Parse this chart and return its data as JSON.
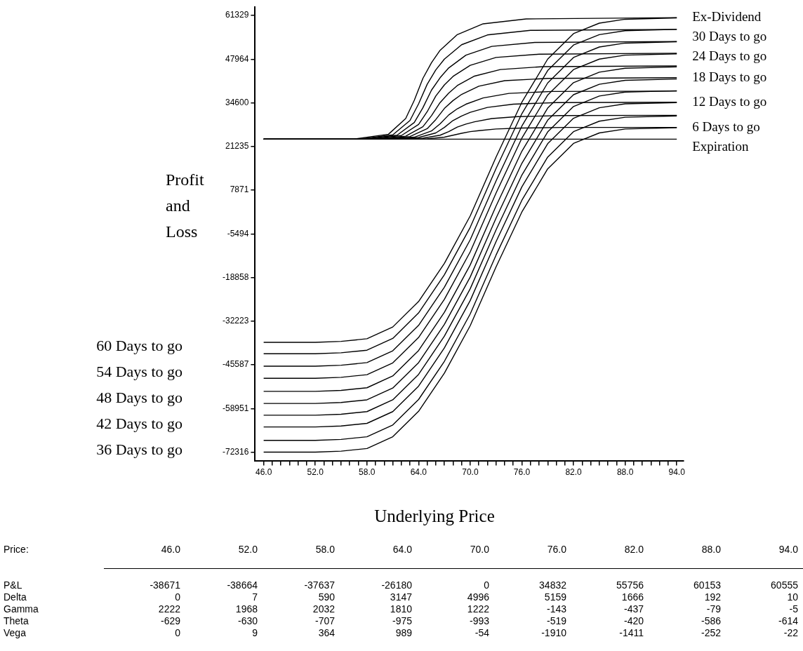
{
  "chart_data": {
    "type": "line",
    "xlabel": "Underlying Price",
    "ylabel": "Profit and Loss",
    "xlim": [
      45,
      94.8
    ],
    "ylim": [
      -74900,
      63900
    ],
    "xticks": [
      {
        "value": 46,
        "label": "46.0"
      },
      {
        "value": 47,
        "label": null
      },
      {
        "value": 48,
        "label": null
      },
      {
        "value": 49,
        "label": null
      },
      {
        "value": 50,
        "label": null
      },
      {
        "value": 51,
        "label": null
      },
      {
        "value": 52,
        "label": "52.0"
      },
      {
        "value": 53,
        "label": null
      },
      {
        "value": 54,
        "label": null
      },
      {
        "value": 55,
        "label": null
      },
      {
        "value": 56,
        "label": null
      },
      {
        "value": 57,
        "label": null
      },
      {
        "value": 58,
        "label": "58.0"
      },
      {
        "value": 59,
        "label": null
      },
      {
        "value": 60,
        "label": null
      },
      {
        "value": 61,
        "label": null
      },
      {
        "value": 62,
        "label": null
      },
      {
        "value": 63,
        "label": null
      },
      {
        "value": 64,
        "label": "64.0"
      },
      {
        "value": 65,
        "label": null
      },
      {
        "value": 66,
        "label": null
      },
      {
        "value": 67,
        "label": null
      },
      {
        "value": 68,
        "label": null
      },
      {
        "value": 69,
        "label": null
      },
      {
        "value": 70,
        "label": "70.0"
      },
      {
        "value": 71,
        "label": null
      },
      {
        "value": 72,
        "label": null
      },
      {
        "value": 73,
        "label": null
      },
      {
        "value": 74,
        "label": null
      },
      {
        "value": 75,
        "label": null
      },
      {
        "value": 76,
        "label": "76.0"
      },
      {
        "value": 77,
        "label": null
      },
      {
        "value": 78,
        "label": null
      },
      {
        "value": 79,
        "label": null
      },
      {
        "value": 80,
        "label": null
      },
      {
        "value": 81,
        "label": null
      },
      {
        "value": 82,
        "label": "82.0"
      },
      {
        "value": 83,
        "label": null
      },
      {
        "value": 84,
        "label": null
      },
      {
        "value": 85,
        "label": null
      },
      {
        "value": 86,
        "label": null
      },
      {
        "value": 87,
        "label": null
      },
      {
        "value": 88,
        "label": "88.0"
      },
      {
        "value": 89,
        "label": null
      },
      {
        "value": 90,
        "label": null
      },
      {
        "value": 91,
        "label": null
      },
      {
        "value": 92,
        "label": null
      },
      {
        "value": 93,
        "label": null
      },
      {
        "value": 94,
        "label": "94.0"
      }
    ],
    "yticks": [
      61329,
      47964,
      34600,
      21235,
      7871,
      -5494,
      -18858,
      -32223,
      -45587,
      -58951,
      -72316
    ],
    "grid": false,
    "legend": false,
    "marker": "none",
    "line_style": "solid",
    "series": [
      {
        "name": "Ex-Dividend",
        "color": "#000000",
        "x": [
          46,
          56.5,
          60.5,
          62.5,
          63.5,
          64.5,
          65.5,
          66.5,
          68.5,
          71.5,
          76.5,
          94
        ],
        "values": [
          23500,
          23500,
          25000,
          29800,
          35400,
          42100,
          46900,
          50700,
          55500,
          58800,
          60300,
          60700
        ]
      },
      {
        "name": "30 Days to go",
        "color": "#000000",
        "x": [
          46,
          57,
          61,
          63,
          64,
          65,
          66,
          67,
          69,
          72,
          77,
          94
        ],
        "values": [
          23500,
          23500,
          24800,
          29200,
          34300,
          40300,
          44700,
          48000,
          52400,
          55400,
          56800,
          57100
        ]
      },
      {
        "color": "#000000",
        "x": [
          46,
          57.5,
          61.5,
          63.5,
          64.5,
          65.5,
          66.5,
          67.5,
          69.5,
          72.5,
          77.5,
          94
        ],
        "values": [
          23500,
          23500,
          24700,
          28600,
          33100,
          38500,
          42300,
          45300,
          49200,
          51900,
          53100,
          53400
        ]
      },
      {
        "name": "24 Days to go",
        "color": "#000000",
        "x": [
          46,
          58,
          62,
          64,
          65,
          66,
          67,
          68,
          70,
          73,
          78,
          94
        ],
        "values": [
          23500,
          23500,
          24600,
          28000,
          31900,
          36700,
          40100,
          42700,
          46100,
          48500,
          49500,
          49800
        ]
      },
      {
        "color": "#000000",
        "x": [
          46,
          58.5,
          62.5,
          64.5,
          65.5,
          66.5,
          67.5,
          68.5,
          70.5,
          73.5,
          78.5,
          94
        ],
        "values": [
          23500,
          23500,
          24400,
          27300,
          30700,
          34700,
          37600,
          39900,
          42800,
          44800,
          45700,
          45900
        ]
      },
      {
        "name": "18 Days to go",
        "color": "#000000",
        "x": [
          46,
          59,
          63,
          65,
          66,
          67,
          68,
          69,
          71,
          74,
          79,
          94
        ],
        "values": [
          23500,
          23500,
          24300,
          26700,
          29500,
          32900,
          35300,
          37200,
          39700,
          41400,
          42100,
          42300
        ]
      },
      {
        "color": "#000000",
        "x": [
          46,
          59.5,
          63.5,
          65.5,
          66.5,
          67.5,
          68.5,
          69.5,
          71.5,
          74.5,
          79.5,
          94
        ],
        "values": [
          23500,
          23500,
          24100,
          26000,
          28200,
          30900,
          32800,
          34200,
          36100,
          37500,
          38100,
          38200
        ]
      },
      {
        "name": "12 Days to go",
        "color": "#000000",
        "x": [
          46,
          60,
          64,
          66,
          67,
          68,
          69,
          70,
          72,
          75,
          80,
          94
        ],
        "values": [
          23500,
          23500,
          24000,
          25400,
          27100,
          29200,
          30600,
          31700,
          33200,
          34200,
          34700,
          34800
        ]
      },
      {
        "color": "#000000",
        "x": [
          46,
          60.5,
          64.5,
          66.5,
          67.5,
          68.5,
          69.5,
          70.5,
          72.5,
          75.5,
          80.5,
          94
        ],
        "values": [
          23500,
          23500,
          23800,
          24700,
          25800,
          27200,
          28100,
          28800,
          29800,
          30400,
          30700,
          30800
        ]
      },
      {
        "name": "6 Days to go",
        "color": "#000000",
        "x": [
          46,
          61,
          65,
          67,
          68,
          69,
          70,
          71,
          73,
          76,
          81,
          94
        ],
        "values": [
          23500,
          23500,
          23600,
          24100,
          24700,
          25300,
          25800,
          26100,
          26600,
          26900,
          27100,
          27100
        ]
      },
      {
        "name": "Expiration",
        "color": "#000000",
        "x": [
          46,
          94
        ],
        "values": [
          23500,
          23500
        ]
      },
      {
        "color": "#000000",
        "x": [
          46,
          52,
          55,
          58,
          61,
          64,
          67,
          70,
          73,
          76,
          79,
          82,
          85,
          88,
          94
        ],
        "values": [
          -38700,
          -38700,
          -38400,
          -37600,
          -34000,
          -26200,
          -14500,
          0,
          18000,
          34800,
          48000,
          55800,
          59000,
          60200,
          60600
        ]
      },
      {
        "color": "#000000",
        "x": [
          46,
          52,
          55,
          58,
          61,
          64,
          67,
          70,
          73,
          76,
          79,
          82,
          85,
          88,
          94
        ],
        "values": [
          -42200,
          -42200,
          -41900,
          -41100,
          -37500,
          -29700,
          -18000,
          -3500,
          14500,
          31300,
          44500,
          52300,
          55500,
          56700,
          57100
        ]
      },
      {
        "color": "#000000",
        "x": [
          46,
          52,
          55,
          58,
          61,
          64,
          67,
          70,
          73,
          76,
          79,
          82,
          85,
          88,
          94
        ],
        "values": [
          -46000,
          -46000,
          -45700,
          -44900,
          -41300,
          -33500,
          -21800,
          -7300,
          10700,
          27500,
          40700,
          48500,
          51700,
          52900,
          53300
        ]
      },
      {
        "color": "#000000",
        "x": [
          46,
          52,
          55,
          58,
          61,
          64,
          67,
          70,
          73,
          76,
          79,
          82,
          85,
          88,
          94
        ],
        "values": [
          -49700,
          -49700,
          -49400,
          -48600,
          -45000,
          -37200,
          -25500,
          -11000,
          7000,
          23800,
          37000,
          44800,
          48000,
          49200,
          49600
        ]
      },
      {
        "color": "#000000",
        "x": [
          46,
          52,
          55,
          58,
          61,
          64,
          67,
          70,
          73,
          76,
          79,
          82,
          85,
          88,
          94
        ],
        "values": [
          -53700,
          -53700,
          -53400,
          -52600,
          -49000,
          -41200,
          -29500,
          -15000,
          3000,
          19800,
          33000,
          40800,
          44000,
          45200,
          45600
        ]
      },
      {
        "color": "#000000",
        "x": [
          46,
          52,
          55,
          58,
          61,
          64,
          67,
          70,
          73,
          76,
          79,
          82,
          85,
          88,
          94
        ],
        "values": [
          -57400,
          -57400,
          -57100,
          -56300,
          -52700,
          -44900,
          -33200,
          -18700,
          -700,
          16100,
          29300,
          37100,
          40300,
          41500,
          41900
        ]
      },
      {
        "color": "#000000",
        "x": [
          46,
          52,
          55,
          58,
          61,
          64,
          67,
          70,
          73,
          76,
          79,
          82,
          85,
          88,
          94
        ],
        "values": [
          -61000,
          -61000,
          -60700,
          -59900,
          -56300,
          -48500,
          -36800,
          -22300,
          -4300,
          12500,
          25700,
          33500,
          36700,
          37900,
          38300
        ]
      },
      {
        "color": "#000000",
        "x": [
          46,
          52,
          55,
          58,
          61,
          64,
          67,
          70,
          73,
          76,
          79,
          82,
          85,
          88,
          94
        ],
        "values": [
          -64600,
          -64600,
          -64300,
          -63500,
          -59900,
          -52100,
          -40400,
          -25900,
          -7900,
          8900,
          22100,
          29900,
          33100,
          34300,
          34700
        ]
      },
      {
        "color": "#000000",
        "x": [
          46,
          52,
          55,
          58,
          61,
          64,
          67,
          70,
          73,
          76,
          79,
          82,
          85,
          88,
          94
        ],
        "values": [
          -68700,
          -68700,
          -68400,
          -67600,
          -64000,
          -56200,
          -44500,
          -30000,
          -12000,
          4800,
          18000,
          25800,
          29000,
          30200,
          30600
        ]
      },
      {
        "color": "#000000",
        "x": [
          46,
          52,
          55,
          58,
          61,
          64,
          67,
          70,
          73,
          76,
          79,
          82,
          85,
          88,
          94
        ],
        "values": [
          -72300,
          -72300,
          -72000,
          -71200,
          -67600,
          -59800,
          -48100,
          -33600,
          -15600,
          1200,
          14400,
          22200,
          25400,
          26600,
          27000
        ]
      }
    ],
    "annotations": [
      "60 Days to go",
      "54 Days to go",
      "48 Days to go",
      "42 Days to go",
      "36 Days to go",
      "Price: 46.0 52.0 58.0 64.0 70.0 76.0 82.0 88.0 94.0",
      "P&L -38671 -38664 -37637 -26180 0 34832 55756 60153 60555",
      "Delta 0 7 590 3147 4996 5159 1666 192 10",
      "Gamma 2222 1968 2032 1810 1222 -143 -437 -79 -5",
      "Theta -629 -630 -707 -975 -993 -519 -420 -586 -614",
      "Vega 0 9 364 989 -54 -1910 -1411 -252 -22"
    ]
  }
}
